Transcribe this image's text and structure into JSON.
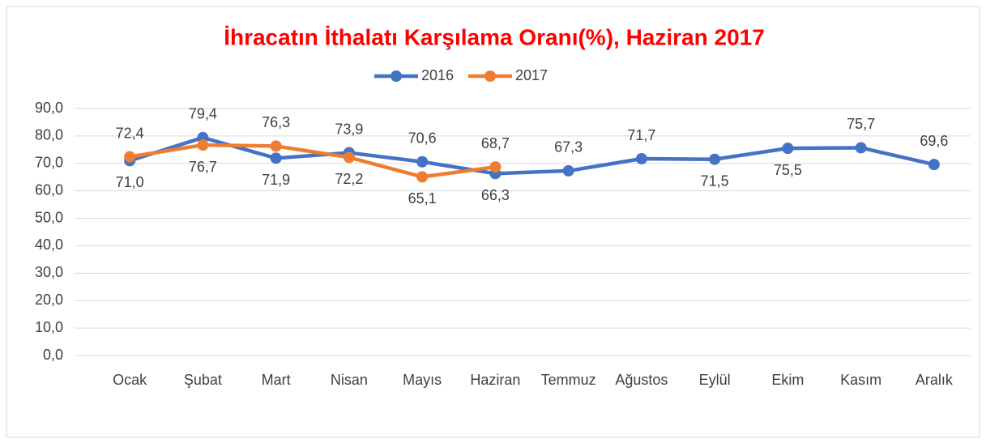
{
  "chart_data": {
    "type": "line",
    "title": "İhracatın İthalatı Karşılama Oranı(%), Haziran 2017",
    "categories": [
      "Ocak",
      "Şubat",
      "Mart",
      "Nisan",
      "Mayıs",
      "Haziran",
      "Temmuz",
      "Ağustos",
      "Eylül",
      "Ekim",
      "Kasım",
      "Aralık"
    ],
    "series": [
      {
        "name": "2016",
        "color": "#4472c4",
        "values": [
          71.0,
          79.4,
          71.9,
          73.9,
          70.6,
          66.3,
          67.3,
          71.7,
          71.5,
          75.5,
          75.7,
          69.6
        ],
        "value_labels": [
          "71,0",
          "79,4",
          "71,9",
          "73,9",
          "70,6",
          "66,3",
          "67,3",
          "71,7",
          "71,5",
          "75,5",
          "75,7",
          "69,6"
        ]
      },
      {
        "name": "2017",
        "color": "#ed7d31",
        "values": [
          72.4,
          76.7,
          76.3,
          72.2,
          65.1,
          68.7,
          null,
          null,
          null,
          null,
          null,
          null
        ],
        "value_labels": [
          "72,4",
          "76,7",
          "76,3",
          "72,2",
          "65,1",
          "68,7",
          null,
          null,
          null,
          null,
          null,
          null
        ]
      }
    ],
    "ylim": [
      0,
      90
    ],
    "yticks": [
      {
        "value": 0,
        "label": "0,0"
      },
      {
        "value": 10,
        "label": "10,0"
      },
      {
        "value": 20,
        "label": "20,0"
      },
      {
        "value": 30,
        "label": "30,0"
      },
      {
        "value": 40,
        "label": "40,0"
      },
      {
        "value": 50,
        "label": "50,0"
      },
      {
        "value": 60,
        "label": "60,0"
      },
      {
        "value": 70,
        "label": "70,0"
      },
      {
        "value": 80,
        "label": "80,0"
      },
      {
        "value": 90,
        "label": "90,0"
      }
    ],
    "grid": true,
    "legend": "top"
  }
}
